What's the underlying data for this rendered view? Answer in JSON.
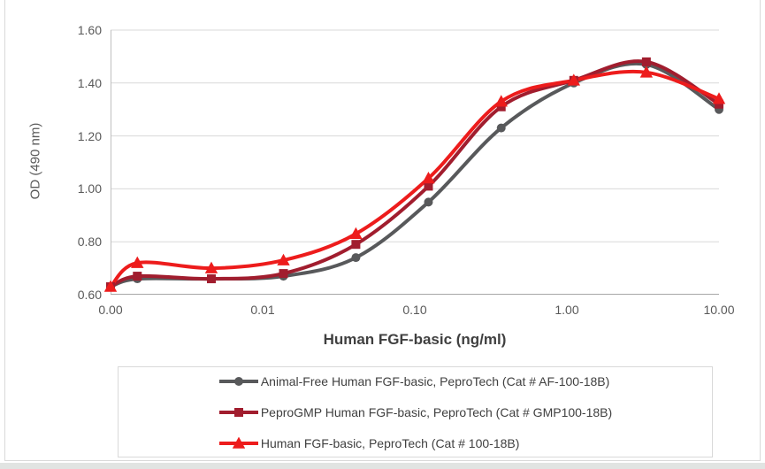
{
  "chart_data": {
    "type": "line",
    "x_scale": "log",
    "title": "",
    "xlabel": "Human FGF-basic (ng/ml)",
    "ylabel": "OD (490 nm)",
    "ylim": [
      0.6,
      1.6
    ],
    "grid": "horizontal",
    "legend_position": "bottom-boxed",
    "x": [
      0,
      0.0015,
      0.0046,
      0.0137,
      0.041,
      0.123,
      0.37,
      1.11,
      3.33,
      10
    ],
    "xticks": [
      {
        "label": "0.00",
        "value": 0.001
      },
      {
        "label": "0.01",
        "value": 0.01
      },
      {
        "label": "0.10",
        "value": 0.1
      },
      {
        "label": "1.00",
        "value": 1
      },
      {
        "label": "10.00",
        "value": 10
      }
    ],
    "yticks": [
      "0.60",
      "0.80",
      "1.00",
      "1.20",
      "1.40",
      "1.60"
    ],
    "series": [
      {
        "name": "Animal-Free Human FGF-basic, PeproTech (Cat # AF-100-18B)",
        "color": "#58595B",
        "marker": "circle",
        "values": [
          0.63,
          0.66,
          0.66,
          0.67,
          0.74,
          0.95,
          1.23,
          1.4,
          1.47,
          1.3
        ]
      },
      {
        "name": "PeproGMP Human FGF-basic, PeproTech (Cat # GMP100-18B)",
        "color": "#A11D2E",
        "marker": "square",
        "values": [
          0.63,
          0.67,
          0.66,
          0.68,
          0.79,
          1.01,
          1.31,
          1.41,
          1.48,
          1.32
        ]
      },
      {
        "name": "Human FGF-basic, PeproTech (Cat # 100-18B)",
        "color": "#ED1C1C",
        "marker": "triangle",
        "values": [
          0.63,
          0.72,
          0.7,
          0.73,
          0.83,
          1.04,
          1.33,
          1.41,
          1.44,
          1.34
        ]
      }
    ],
    "style": {
      "gridline_color": "#d9d9d9",
      "axis_line_color": "#a6a6a6",
      "tick_text_color": "#595959",
      "line_width": 4
    }
  }
}
